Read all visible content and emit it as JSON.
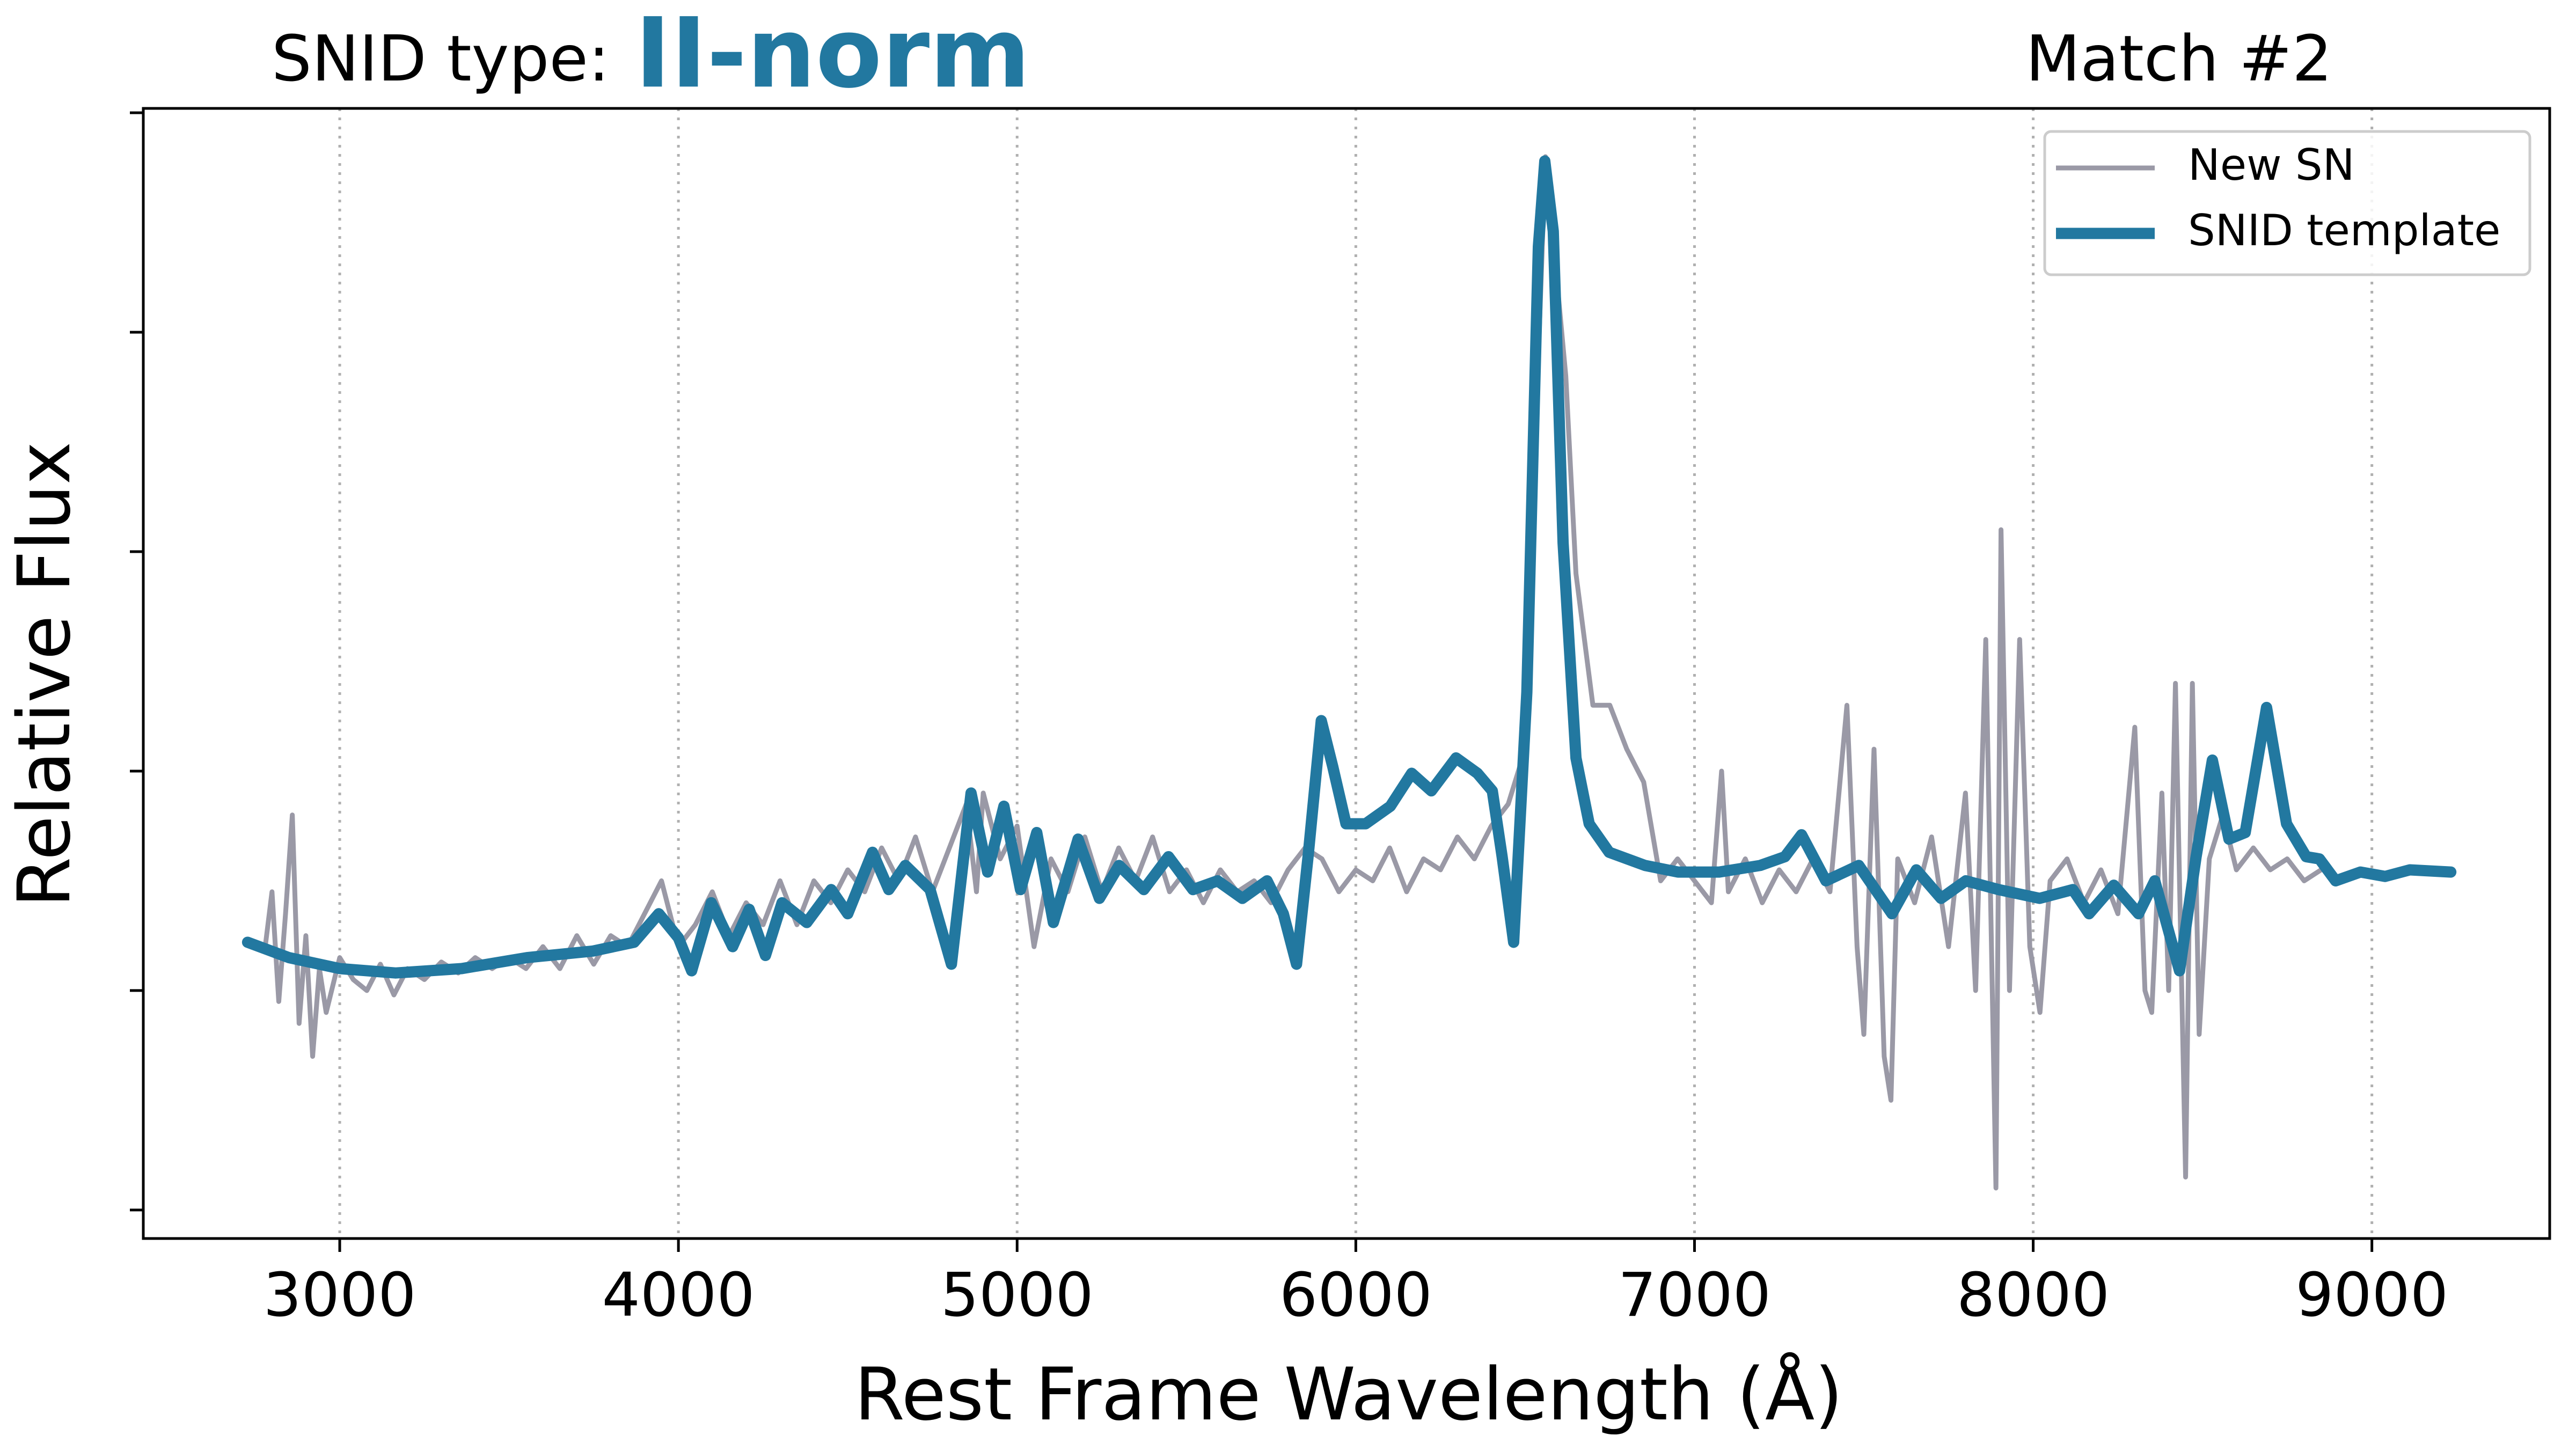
{
  "chart_data": {
    "type": "line",
    "title": "SNID type:",
    "title_value": "II-norm",
    "title_value_color": "#2278a0",
    "subtitle": "Match #2",
    "x_label": "Rest Frame Wavelength (Å)",
    "y_label": "Relative Flux",
    "xlim": [
      2420,
      9525
    ],
    "ylim": [
      -0.13,
      5.02
    ],
    "xticks": [
      3000,
      4000,
      5000,
      6000,
      7000,
      8000,
      9000
    ],
    "yticks": [
      0,
      1,
      2,
      3,
      4,
      5
    ],
    "grid": true,
    "legend": "upper right",
    "series": [
      {
        "name": "New SN",
        "color": "#9a99a6",
        "x": [
          2780,
          2800,
          2820,
          2840,
          2860,
          2880,
          2900,
          2920,
          2940,
          2960,
          3000,
          3040,
          3080,
          3120,
          3160,
          3200,
          3250,
          3300,
          3350,
          3400,
          3450,
          3500,
          3550,
          3600,
          3650,
          3700,
          3750,
          3800,
          3850,
          3900,
          3950,
          4000,
          4050,
          4100,
          4150,
          4200,
          4250,
          4300,
          4350,
          4400,
          4450,
          4500,
          4550,
          4600,
          4650,
          4700,
          4750,
          4800,
          4850,
          4880,
          4900,
          4950,
          5000,
          5050,
          5100,
          5150,
          5200,
          5250,
          5300,
          5350,
          5400,
          5450,
          5500,
          5550,
          5600,
          5650,
          5700,
          5750,
          5800,
          5850,
          5900,
          5950,
          6000,
          6050,
          6100,
          6150,
          6200,
          6250,
          6300,
          6350,
          6400,
          6450,
          6500,
          6530,
          6560,
          6590,
          6620,
          6650,
          6700,
          6750,
          6800,
          6850,
          6900,
          6950,
          7000,
          7050,
          7080,
          7100,
          7150,
          7200,
          7250,
          7300,
          7350,
          7400,
          7450,
          7480,
          7500,
          7530,
          7560,
          7580,
          7600,
          7650,
          7700,
          7750,
          7800,
          7830,
          7860,
          7890,
          7905,
          7930,
          7960,
          7990,
          8020,
          8050,
          8100,
          8150,
          8200,
          8250,
          8300,
          8330,
          8350,
          8380,
          8400,
          8420,
          8450,
          8470,
          8490,
          8520,
          8560,
          8600,
          8650,
          8700,
          8750,
          8800,
          8850
        ],
        "values": [
          1.2,
          1.45,
          0.95,
          1.35,
          1.8,
          0.85,
          1.25,
          0.7,
          1.1,
          0.9,
          1.15,
          1.05,
          1.0,
          1.12,
          0.98,
          1.1,
          1.05,
          1.13,
          1.08,
          1.15,
          1.1,
          1.15,
          1.1,
          1.2,
          1.1,
          1.25,
          1.12,
          1.25,
          1.2,
          1.35,
          1.5,
          1.2,
          1.3,
          1.45,
          1.25,
          1.4,
          1.3,
          1.5,
          1.3,
          1.5,
          1.4,
          1.55,
          1.45,
          1.65,
          1.5,
          1.7,
          1.45,
          1.65,
          1.85,
          1.45,
          1.9,
          1.6,
          1.75,
          1.2,
          1.6,
          1.45,
          1.7,
          1.45,
          1.65,
          1.5,
          1.7,
          1.45,
          1.55,
          1.4,
          1.55,
          1.45,
          1.5,
          1.4,
          1.55,
          1.65,
          1.6,
          1.45,
          1.55,
          1.5,
          1.65,
          1.45,
          1.6,
          1.55,
          1.7,
          1.6,
          1.75,
          1.85,
          2.1,
          3.5,
          4.8,
          4.3,
          3.8,
          2.9,
          2.3,
          2.3,
          2.1,
          1.95,
          1.5,
          1.6,
          1.5,
          1.4,
          2.0,
          1.45,
          1.6,
          1.4,
          1.55,
          1.45,
          1.6,
          1.45,
          2.3,
          1.2,
          0.8,
          2.1,
          0.7,
          0.5,
          1.6,
          1.4,
          1.7,
          1.2,
          1.9,
          1.0,
          2.6,
          0.1,
          3.1,
          1.0,
          2.6,
          1.2,
          0.9,
          1.5,
          1.6,
          1.4,
          1.55,
          1.35,
          2.2,
          1.0,
          0.9,
          1.9,
          1.0,
          2.4,
          0.15,
          2.4,
          0.8,
          1.6,
          1.8,
          1.55,
          1.65,
          1.55,
          1.6,
          1.5,
          1.55
        ]
      },
      {
        "name": "SNID template",
        "color": "#2278a0",
        "x": [
          2728,
          2850,
          3000,
          3165,
          3360,
          3553,
          3748,
          3869,
          3942,
          4000,
          4039,
          4097,
          4160,
          4209,
          4257,
          4306,
          4379,
          4451,
          4500,
          4573,
          4621,
          4670,
          4743,
          4806,
          4864,
          4913,
          4961,
          5010,
          5058,
          5107,
          5180,
          5243,
          5301,
          5374,
          5447,
          5519,
          5592,
          5665,
          5738,
          5786,
          5825,
          5859,
          5898,
          5932,
          5971,
          6029,
          6102,
          6165,
          6223,
          6296,
          6359,
          6403,
          6432,
          6466,
          6505,
          6539,
          6558,
          6583,
          6612,
          6650,
          6689,
          6748,
          6854,
          6951,
          7073,
          7194,
          7267,
          7316,
          7388,
          7485,
          7583,
          7655,
          7728,
          7801,
          7898,
          8019,
          8117,
          8165,
          8238,
          8311,
          8359,
          8432,
          8481,
          8529,
          8578,
          8626,
          8689,
          8748,
          8806,
          8845,
          8893,
          8966,
          9039,
          9112,
          9233
        ],
        "values": [
          1.22,
          1.15,
          1.1,
          1.08,
          1.1,
          1.15,
          1.18,
          1.22,
          1.35,
          1.24,
          1.09,
          1.4,
          1.2,
          1.37,
          1.16,
          1.4,
          1.31,
          1.46,
          1.35,
          1.63,
          1.46,
          1.57,
          1.46,
          1.12,
          1.9,
          1.54,
          1.84,
          1.46,
          1.72,
          1.31,
          1.69,
          1.42,
          1.57,
          1.46,
          1.61,
          1.46,
          1.5,
          1.42,
          1.5,
          1.35,
          1.12,
          1.61,
          2.23,
          2.02,
          1.76,
          1.76,
          1.84,
          1.99,
          1.91,
          2.06,
          1.99,
          1.91,
          1.61,
          1.22,
          2.36,
          4.39,
          4.78,
          4.46,
          3.04,
          2.06,
          1.76,
          1.63,
          1.57,
          1.54,
          1.54,
          1.57,
          1.61,
          1.71,
          1.5,
          1.57,
          1.35,
          1.55,
          1.42,
          1.5,
          1.46,
          1.42,
          1.46,
          1.35,
          1.48,
          1.35,
          1.5,
          1.09,
          1.61,
          2.05,
          1.69,
          1.72,
          2.29,
          1.76,
          1.61,
          1.6,
          1.5,
          1.54,
          1.52,
          1.55,
          1.54
        ]
      }
    ]
  }
}
